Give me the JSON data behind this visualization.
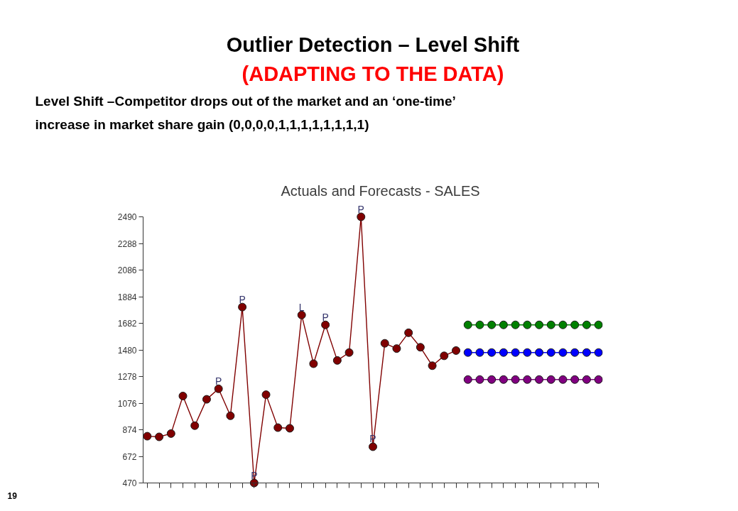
{
  "chart_data": {
    "type": "line",
    "title": "Outlier Detection – Level Shift",
    "subtitle": "(ADAPTING TO THE DATA)",
    "annotations": [
      "Level Shift –Competitor drops out of the market and an ‘one-time’ increase in market share gain (0,0,0,0,1,1,1,1,1,1,1,1)",
      "Actuals and Forecasts - SALES",
      "19",
      {
        "text": "P",
        "y": 1185
      },
      {
        "text": "P",
        "y": 1805
      },
      {
        "text": "P",
        "y": 470
      },
      {
        "text": "L",
        "y": 1745
      },
      {
        "text": "P",
        "y": 1670
      },
      {
        "text": "P",
        "y": 2490
      },
      {
        "text": "P",
        "y": 745
      }
    ],
    "categories": [
      null,
      null,
      null,
      null,
      null,
      null,
      null,
      null,
      null,
      null,
      null,
      null,
      null,
      null,
      null,
      null,
      null,
      null,
      null,
      null,
      null,
      null,
      null,
      null,
      null,
      null,
      null,
      null,
      null,
      null,
      null,
      null,
      null,
      null,
      null,
      null,
      null,
      null,
      null
    ],
    "series": [
      {
        "color": "#800000",
        "values": [
          825,
          820,
          845,
          1130,
          905,
          1105,
          1185,
          980,
          1805,
          470,
          1140,
          890,
          885,
          1745,
          1375,
          1670,
          1400,
          1460,
          2490,
          745,
          1530,
          1490,
          1610,
          1500,
          1360,
          1435,
          1475,
          null,
          null,
          null,
          null,
          null,
          null,
          null,
          null,
          null,
          null,
          null,
          null
        ]
      },
      {
        "color": "#008000",
        "values": [
          null,
          null,
          null,
          null,
          null,
          null,
          null,
          null,
          null,
          null,
          null,
          null,
          null,
          null,
          null,
          null,
          null,
          null,
          null,
          null,
          null,
          null,
          null,
          null,
          null,
          null,
          null,
          1670,
          1670,
          1670,
          1670,
          1670,
          1670,
          1670,
          1670,
          1670,
          1670,
          1670,
          1670
        ]
      },
      {
        "color": "#0000ff",
        "values": [
          null,
          null,
          null,
          null,
          null,
          null,
          null,
          null,
          null,
          null,
          null,
          null,
          null,
          null,
          null,
          null,
          null,
          null,
          null,
          null,
          null,
          null,
          null,
          null,
          null,
          null,
          null,
          1460,
          1460,
          1460,
          1460,
          1460,
          1460,
          1460,
          1460,
          1460,
          1460,
          1460,
          1460
        ]
      },
      {
        "color": "#800080",
        "values": [
          null,
          null,
          null,
          null,
          null,
          null,
          null,
          null,
          null,
          null,
          null,
          null,
          null,
          null,
          null,
          null,
          null,
          null,
          null,
          null,
          null,
          null,
          null,
          null,
          null,
          null,
          null,
          1255,
          1255,
          1255,
          1255,
          1255,
          1255,
          1255,
          1255,
          1255,
          1255,
          1255,
          1255
        ]
      }
    ],
    "ylim": [
      470,
      2490
    ],
    "yticks": [
      470,
      672,
      874,
      1076,
      1278,
      1480,
      1682,
      1884,
      2086,
      2288,
      2490
    ],
    "grid": false,
    "marker": "circle",
    "line_style": "solid"
  }
}
